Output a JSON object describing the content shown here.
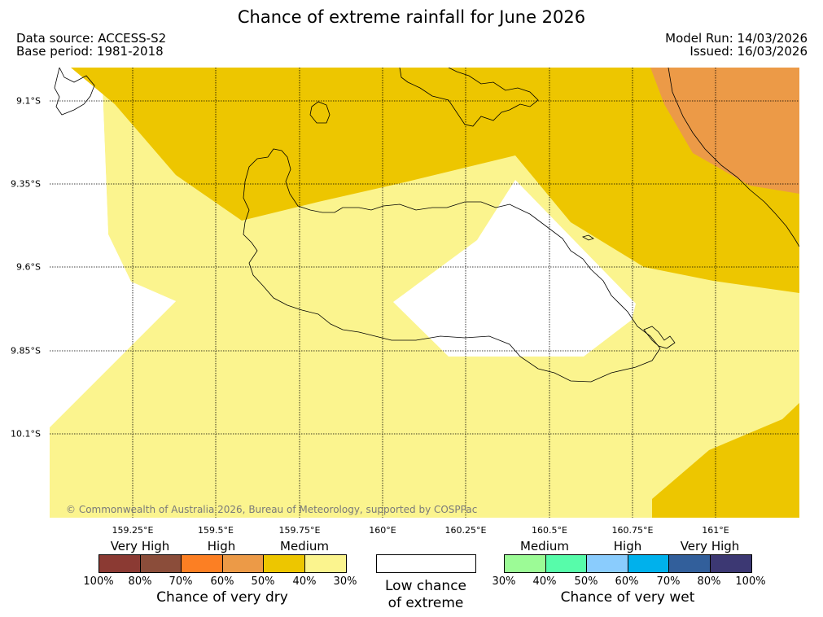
{
  "header": {
    "title": "Chance of extreme rainfall for June 2026",
    "data_source": "Data source: ACCESS-S2",
    "base_period": "Base period: 1981-2018",
    "model_run": "Model Run: 14/03/2026",
    "issued": "Issued: 16/03/2026"
  },
  "map": {
    "latitudes": [
      "9.1°S",
      "9.35°S",
      "9.6°S",
      "9.85°S",
      "10.1°S"
    ],
    "longitudes": [
      "159.25°E",
      "159.5°E",
      "159.75°E",
      "160°E",
      "160.25°E",
      "160.5°E",
      "160.75°E",
      "161°E"
    ],
    "copyright": "© Commonwealth of Australia 2026, Bureau of Meteorology, supported by COSPPac",
    "colors": {
      "dry_medium": "#edc600",
      "dry_low": "#fbf48e",
      "dry_high": "#ec9a47",
      "neutral": "#ffffff"
    }
  },
  "legend": {
    "dry": {
      "categories": [
        "Very High",
        "High",
        "Medium"
      ],
      "colors": [
        "#8b3a33",
        "#8b4d3a",
        "#fc7f23",
        "#ec9a47",
        "#edc600",
        "#fbf48e"
      ],
      "ticks": [
        "100%",
        "80%",
        "70%",
        "60%",
        "50%",
        "40%",
        "30%"
      ],
      "title": "Chance of very dry"
    },
    "low": {
      "line1": "Low chance",
      "line2": "of extreme"
    },
    "wet": {
      "categories": [
        "Medium",
        "High",
        "Very High"
      ],
      "colors": [
        "#9cfb96",
        "#57fcaa",
        "#8accfd",
        "#00b1ec",
        "#325f9b",
        "#3c3873"
      ],
      "ticks": [
        "30%",
        "40%",
        "50%",
        "60%",
        "70%",
        "80%",
        "100%"
      ],
      "title": "Chance of very wet"
    }
  }
}
